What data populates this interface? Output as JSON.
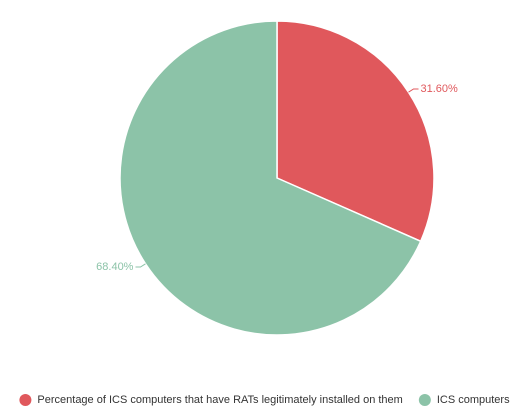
{
  "chart_data": {
    "type": "pie",
    "categories": [
      "Percentage of ICS computers that have RATs legitimately installed on them",
      "ICS computers"
    ],
    "values": [
      31.6,
      68.4
    ],
    "value_labels": [
      "31.60%",
      "68.40%"
    ],
    "colors": [
      "#e0585c",
      "#8cc3a8"
    ],
    "legend": "bottom"
  }
}
